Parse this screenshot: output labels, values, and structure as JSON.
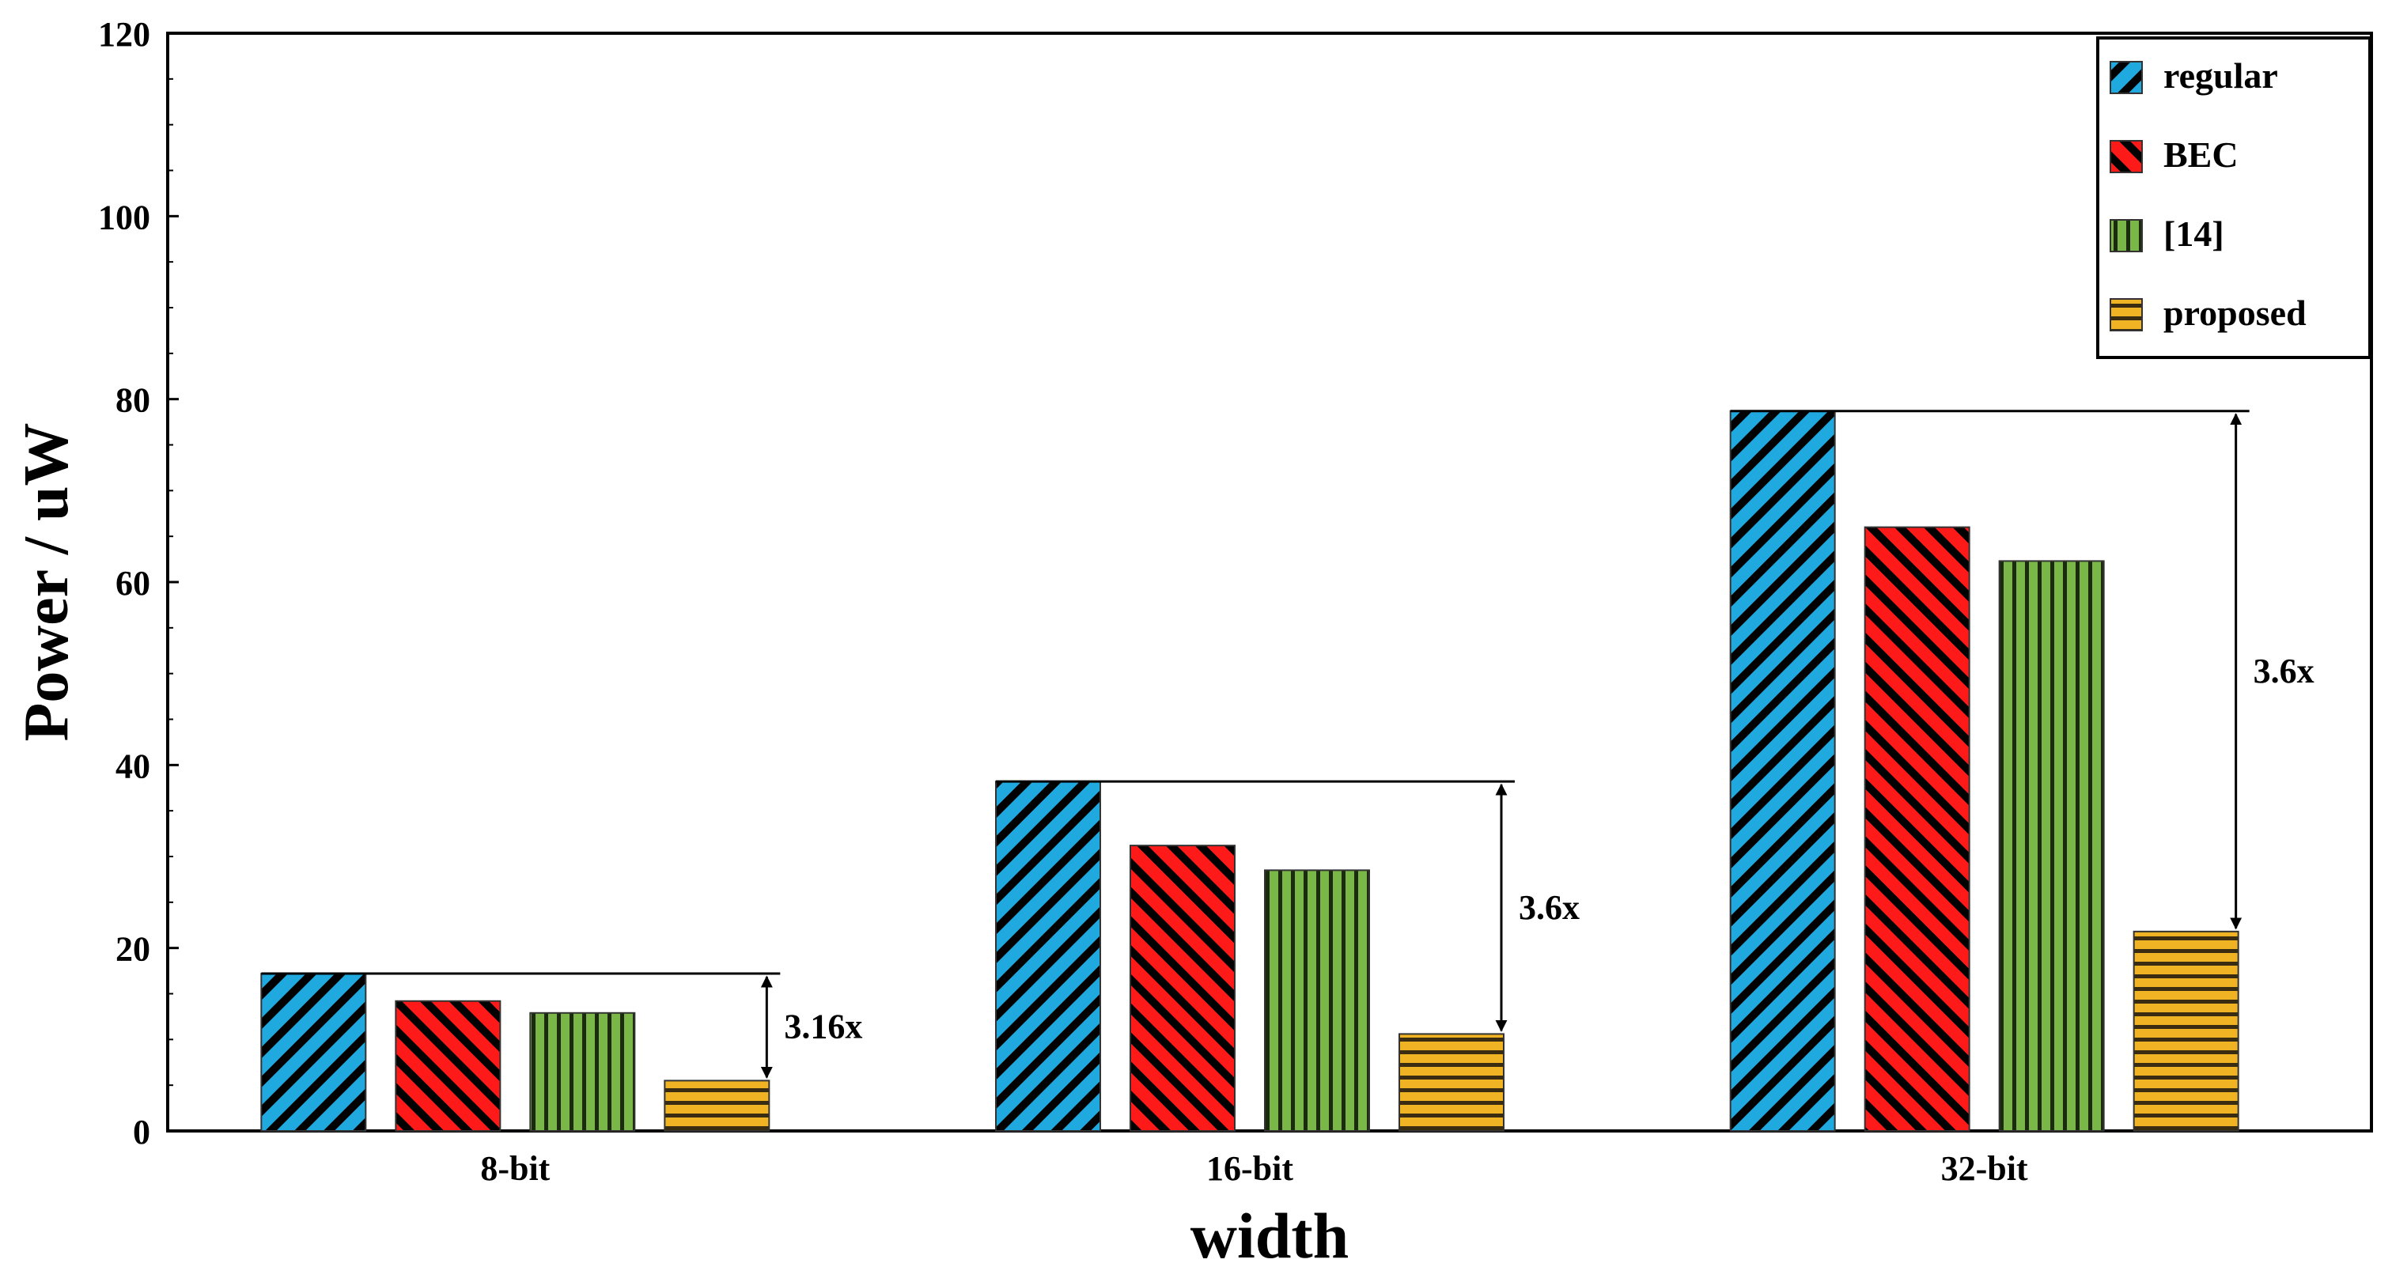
{
  "chart_data": {
    "type": "bar",
    "title": "",
    "xlabel": "width",
    "ylabel": "Power / uW",
    "ylim": [
      0,
      120
    ],
    "yticks": [
      0,
      20,
      40,
      60,
      80,
      100,
      120
    ],
    "categories": [
      "8-bit",
      "16-bit",
      "32-bit"
    ],
    "series": [
      {
        "name": "regular",
        "values": [
          17.2,
          38.2,
          78.7
        ],
        "color": "#1fa9df",
        "pattern": "diagonal-down"
      },
      {
        "name": "BEC",
        "values": [
          14.2,
          31.2,
          66.0
        ],
        "color": "#ff1a1a",
        "pattern": "diagonal-up"
      },
      {
        "name": "[14]",
        "values": [
          12.9,
          28.5,
          62.3
        ],
        "color": "#7ab648",
        "pattern": "vertical"
      },
      {
        "name": "proposed",
        "values": [
          5.5,
          10.6,
          21.8
        ],
        "color": "#f0b323",
        "pattern": "horizontal"
      }
    ],
    "annotations": [
      {
        "category": "8-bit",
        "text": "3.16x",
        "from": 17.2,
        "to": 5.5
      },
      {
        "category": "16-bit",
        "text": "3.6x",
        "from": 38.2,
        "to": 10.6
      },
      {
        "category": "32-bit",
        "text": "3.6x",
        "from": 78.7,
        "to": 21.8
      }
    ],
    "legend_position": "top-right",
    "grid": false
  }
}
